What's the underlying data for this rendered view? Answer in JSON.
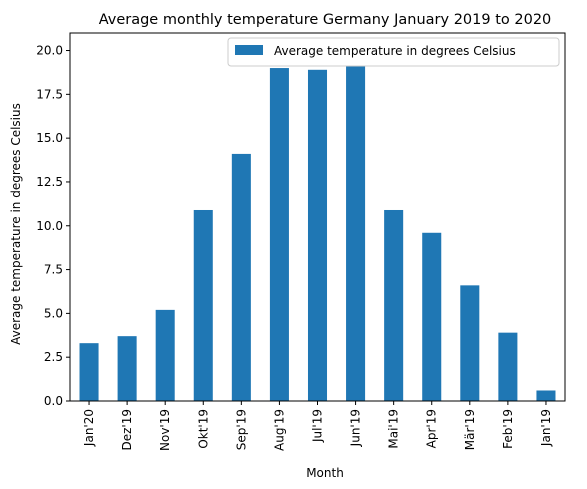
{
  "chart_data": {
    "type": "bar",
    "title": "Average monthly temperature Germany January 2019 to 2020",
    "xlabel": "Month",
    "ylabel": "Average temperature in degrees Celsius",
    "categories": [
      "Jan'20",
      "Dez'19",
      "Nov'19",
      "Okt'19",
      "Sep'19",
      "Aug'19",
      "Jul'19",
      "Jun'19",
      "Mai'19",
      "Apr'19",
      "Mär'19",
      "Feb'19",
      "Jan'19"
    ],
    "series": [
      {
        "name": "Average temperature in degrees Celsius",
        "color": "#1f77b4",
        "values": [
          3.3,
          3.7,
          5.2,
          10.9,
          14.1,
          19.0,
          18.9,
          19.8,
          10.9,
          9.6,
          6.6,
          3.9,
          0.6
        ]
      }
    ],
    "ylim": [
      0,
      21
    ],
    "yticks": [
      "0.0",
      "2.5",
      "5.0",
      "7.5",
      "10.0",
      "12.5",
      "15.0",
      "17.5",
      "20.0"
    ],
    "grid": false,
    "legend_position": "top-right"
  }
}
